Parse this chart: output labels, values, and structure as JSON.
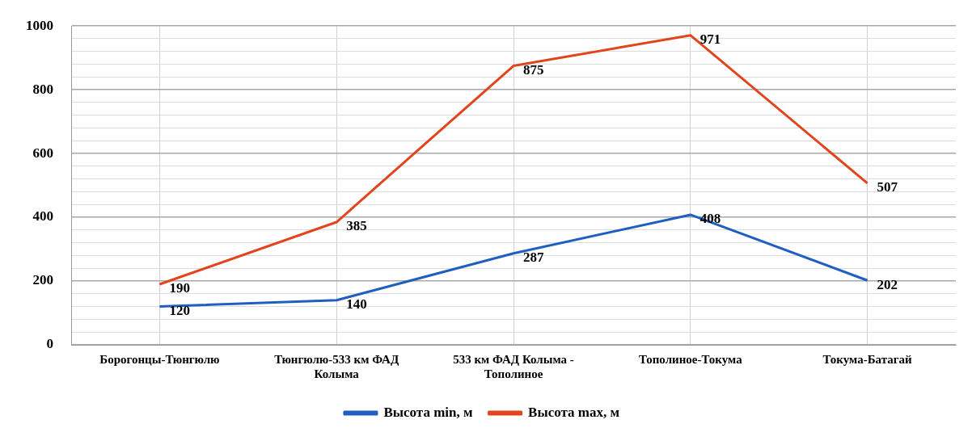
{
  "chart_data": {
    "type": "line",
    "categories": [
      "Борогонцы-Тюнгюлю",
      "Тюнгюлю-533 км ФАД Колыма",
      "533 км ФАД Колыма - Тополиное",
      "Тополиное-Токума",
      "Токума-Батагай"
    ],
    "series": [
      {
        "name": "Высота min, м",
        "color": "#1f5fbf",
        "values": [
          120,
          140,
          287,
          408,
          202
        ]
      },
      {
        "name": "Высота max, м",
        "color": "#e2451c",
        "values": [
          190,
          385,
          875,
          971,
          507
        ]
      }
    ],
    "ylim": [
      0,
      1000
    ],
    "yticks": [
      0,
      {
        "value": 40,
        "label": null
      },
      {
        "value": 80,
        "label": null
      },
      {
        "value": 120,
        "label": null
      },
      {
        "value": 160,
        "label": null
      },
      200,
      {
        "value": 240,
        "label": null
      },
      {
        "value": 280,
        "label": null
      },
      {
        "value": 320,
        "label": null
      },
      {
        "value": 360,
        "label": null
      },
      400,
      {
        "value": 440,
        "label": null
      },
      {
        "value": 480,
        "label": null
      },
      {
        "value": 520,
        "label": null
      },
      {
        "value": 560,
        "label": null
      },
      600,
      {
        "value": 640,
        "label": null
      },
      {
        "value": 680,
        "label": null
      },
      {
        "value": 720,
        "label": null
      },
      {
        "value": 760,
        "label": null
      },
      800,
      {
        "value": 840,
        "label": null
      },
      {
        "value": 880,
        "label": null
      },
      {
        "value": 920,
        "label": null
      },
      {
        "value": 960,
        "label": null
      },
      1000
    ],
    "grid": true,
    "legend": "bottom",
    "data_labels": true,
    "marker": "none",
    "line_style": "solid"
  }
}
